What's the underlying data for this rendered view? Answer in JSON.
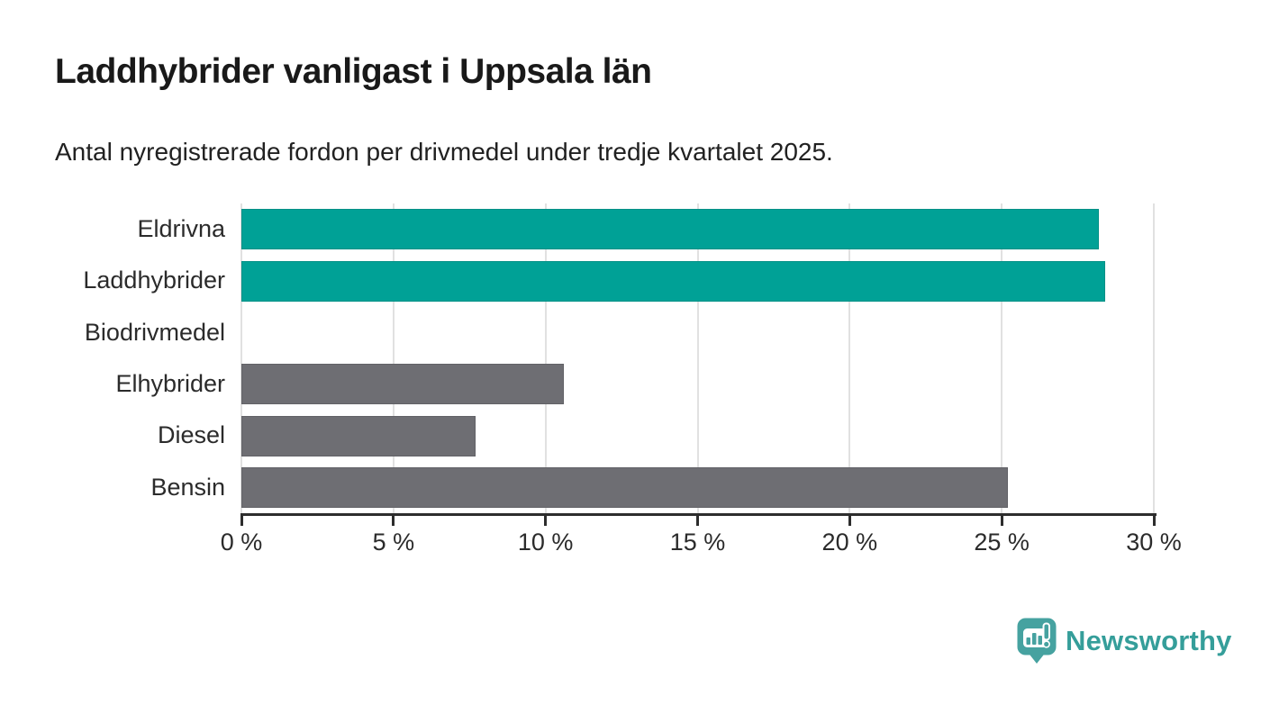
{
  "header": {
    "title": "Laddhybrider vanligast i Uppsala län",
    "subtitle": "Antal nyregistrerade fordon per drivmedel under tredje kvartalet 2025."
  },
  "chart_data": {
    "type": "bar",
    "orientation": "horizontal",
    "title": "Laddhybrider vanligast i Uppsala län",
    "subtitle": "Antal nyregistrerade fordon per drivmedel under tredje kvartalet 2025.",
    "categories": [
      "Eldrivna",
      "Laddhybrider",
      "Biodrivmedel",
      "Elhybrider",
      "Diesel",
      "Bensin"
    ],
    "values": [
      28.2,
      28.4,
      0,
      10.6,
      7.7,
      25.2
    ],
    "unit": "%",
    "bar_colors": [
      "#00a196",
      "#00a196",
      "#6e6e73",
      "#6e6e73",
      "#6e6e73",
      "#6e6e73"
    ],
    "highlight_color": "#00a196",
    "default_color": "#6e6e73",
    "xlabel": "",
    "ylabel": "",
    "xlim": [
      0,
      30
    ],
    "x_ticks": [
      0,
      5,
      10,
      15,
      20,
      25,
      30
    ],
    "x_tick_labels": [
      "0 %",
      "5 %",
      "10 %",
      "15 %",
      "20 %",
      "25 %",
      "30 %"
    ],
    "grid": true,
    "grid_color": "#e1e1e1",
    "axis_color": "#2d2d2d",
    "legend": "none"
  },
  "footer": {
    "brand": "Newsworthy",
    "brand_text_color": "#359e9a",
    "logo_color": "#46a2a0",
    "logo_icon": "newsworthy-pin-bar-chart-icon"
  }
}
